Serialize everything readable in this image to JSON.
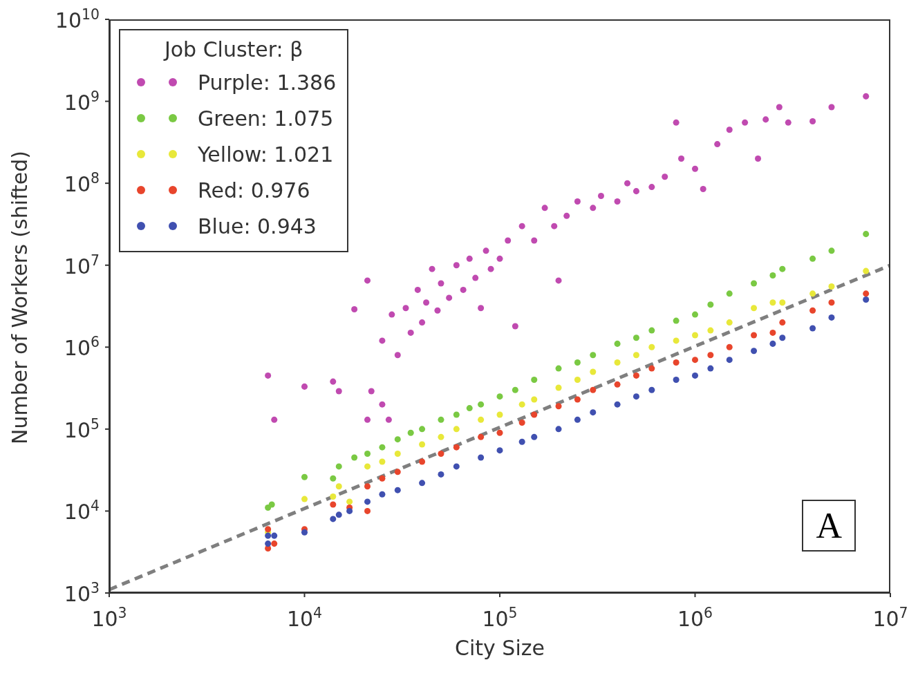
{
  "chart_data": {
    "type": "scatter",
    "xlabel": "City Size",
    "ylabel": "Number of Workers (shifted)",
    "legend_title": "Job Cluster: β",
    "legend": "top left",
    "marker": "circle",
    "grid": false,
    "log": "xy",
    "annotations": [
      "A"
    ],
    "xlim": [
      1000,
      10000000
    ],
    "ylim": [
      1000,
      10000000000
    ],
    "xticks": [
      {
        "value": 1000,
        "label": "10$^{3}$"
      },
      {
        "value": 10000,
        "label": "10$^{4}$"
      },
      {
        "value": 100000,
        "label": "10$^{5}$"
      },
      {
        "value": 1000000,
        "label": "10$^{6}$"
      },
      {
        "value": 10000000,
        "label": "10$^{7}$"
      }
    ],
    "yticks": [
      {
        "value": 1000,
        "label": "10$^{3}$"
      },
      {
        "value": 10000,
        "label": "10$^{4}$"
      },
      {
        "value": 100000,
        "label": "10$^{5}$"
      },
      {
        "value": 1000000,
        "label": "10$^{6}$"
      },
      {
        "value": 10000000,
        "label": "10$^{7}$"
      },
      {
        "value": 100000000,
        "label": "10$^{8}$"
      },
      {
        "value": 1000000000,
        "label": "10$^{9}$"
      },
      {
        "value": 10000000000,
        "label": "10$^{10}$"
      }
    ],
    "series": [
      {
        "type": "line",
        "color": "#7f7f7f",
        "line_style": "dashed",
        "marker": "none",
        "x": [
          1000,
          10000000
        ],
        "values": [
          1100,
          10000000
        ]
      },
      {
        "name": "Purple: 1.386",
        "color": "#c04ab0",
        "x": [
          6500,
          7000,
          10000,
          14000,
          15000,
          18000,
          21000,
          21000,
          22000,
          25000,
          27000,
          25000,
          28000,
          30000,
          33000,
          35000,
          38000,
          40000,
          42000,
          45000,
          48000,
          50000,
          55000,
          60000,
          65000,
          70000,
          75000,
          80000,
          85000,
          90000,
          100000,
          110000,
          120000,
          130000,
          150000,
          170000,
          190000,
          200000,
          220000,
          250000,
          300000,
          330000,
          400000,
          450000,
          500000,
          600000,
          700000,
          800000,
          850000,
          1000000,
          1100000,
          1300000,
          1500000,
          1800000,
          2100000,
          2300000,
          2700000,
          3000000,
          4000000,
          5000000,
          7500000
        ],
        "values": [
          450000,
          130000,
          330000,
          380000,
          290000,
          2900000,
          130000,
          6500000,
          290000,
          200000,
          130000,
          1200000,
          2500000,
          800000,
          3000000,
          1500000,
          5000000,
          2000000,
          3500000,
          9000000,
          2800000,
          6000000,
          4000000,
          10000000,
          5000000,
          12000000,
          7000000,
          3000000,
          15000000,
          9000000,
          12000000,
          20000000,
          1800000,
          30000000,
          20000000,
          50000000,
          30000000,
          6500000,
          40000000,
          60000000,
          50000000,
          70000000,
          60000000,
          100000000,
          80000000,
          90000000,
          120000000,
          550000000,
          200000000,
          150000000,
          85000000,
          300000000,
          450000000,
          550000000,
          200000000,
          600000000,
          850000000,
          550000000,
          570000000,
          850000000,
          1150000000
        ]
      },
      {
        "name": "Green: 1.075",
        "color": "#7ac943",
        "x": [
          6500,
          6800,
          10000,
          14000,
          15000,
          18000,
          21000,
          25000,
          30000,
          35000,
          40000,
          50000,
          60000,
          70000,
          80000,
          100000,
          120000,
          150000,
          200000,
          250000,
          300000,
          400000,
          500000,
          600000,
          800000,
          1000000,
          1200000,
          1500000,
          2000000,
          2500000,
          2800000,
          4000000,
          5000000,
          7500000
        ],
        "values": [
          11000,
          12000,
          26000,
          25000,
          35000,
          45000,
          50000,
          60000,
          75000,
          90000,
          100000,
          130000,
          150000,
          180000,
          200000,
          250000,
          300000,
          400000,
          550000,
          650000,
          800000,
          1100000,
          1300000,
          1600000,
          2100000,
          2500000,
          3300000,
          4500000,
          6000000,
          7500000,
          9000000,
          12000000,
          15000000,
          24000000
        ]
      },
      {
        "name": "Yellow: 1.021",
        "color": "#e8e83a",
        "x": [
          6500,
          10000,
          14000,
          15000,
          17000,
          21000,
          25000,
          30000,
          40000,
          50000,
          60000,
          80000,
          100000,
          130000,
          150000,
          200000,
          250000,
          300000,
          400000,
          500000,
          600000,
          800000,
          1000000,
          1200000,
          1500000,
          2000000,
          2500000,
          2800000,
          4000000,
          5000000,
          7500000
        ],
        "values": [
          5500,
          14000,
          15000,
          20000,
          13000,
          35000,
          40000,
          50000,
          65000,
          80000,
          100000,
          130000,
          150000,
          200000,
          230000,
          320000,
          400000,
          500000,
          650000,
          800000,
          1000000,
          1200000,
          1400000,
          1600000,
          2000000,
          3000000,
          3500000,
          3500000,
          4500000,
          5500000,
          8500000
        ]
      },
      {
        "name": "Red: 0.976",
        "color": "#e8452c",
        "x": [
          6500,
          6500,
          7000,
          10000,
          14000,
          17000,
          21000,
          21000,
          25000,
          30000,
          40000,
          50000,
          60000,
          80000,
          100000,
          130000,
          150000,
          200000,
          250000,
          300000,
          400000,
          500000,
          600000,
          800000,
          1000000,
          1200000,
          1500000,
          2000000,
          2500000,
          2800000,
          4000000,
          5000000,
          7500000
        ],
        "values": [
          3500,
          6000,
          4000,
          6000,
          12000,
          11000,
          10000,
          20000,
          25000,
          30000,
          40000,
          50000,
          60000,
          80000,
          90000,
          120000,
          150000,
          190000,
          230000,
          300000,
          350000,
          450000,
          550000,
          650000,
          700000,
          800000,
          1000000,
          1400000,
          1500000,
          2000000,
          2800000,
          3500000,
          4500000
        ]
      },
      {
        "name": "Blue: 0.943",
        "color": "#4050b0",
        "x": [
          6500,
          6500,
          7000,
          10000,
          14000,
          15000,
          17000,
          21000,
          25000,
          30000,
          40000,
          50000,
          60000,
          80000,
          100000,
          130000,
          150000,
          200000,
          250000,
          300000,
          400000,
          500000,
          600000,
          800000,
          1000000,
          1200000,
          1500000,
          2000000,
          2500000,
          2800000,
          4000000,
          5000000,
          7500000
        ],
        "values": [
          4000,
          5000,
          5000,
          5500,
          8000,
          9000,
          10000,
          13000,
          16000,
          18000,
          22000,
          28000,
          35000,
          45000,
          55000,
          70000,
          80000,
          100000,
          130000,
          160000,
          200000,
          250000,
          300000,
          400000,
          450000,
          550000,
          700000,
          900000,
          1100000,
          1300000,
          1700000,
          2300000,
          3800000
        ]
      }
    ]
  }
}
